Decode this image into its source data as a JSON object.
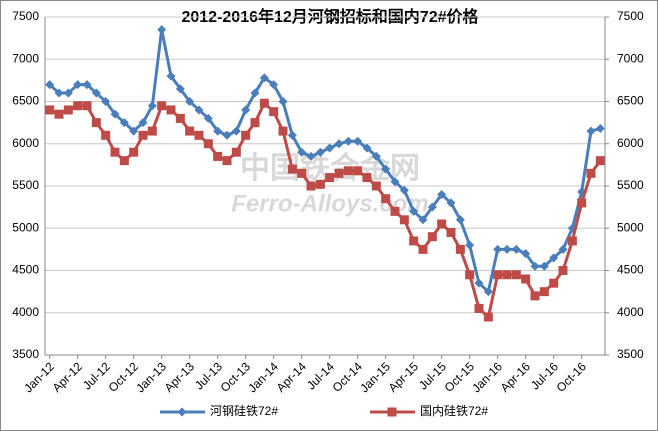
{
  "chart_data": {
    "type": "line",
    "title": "2012-2016年12月河钢招标和国内72#价格",
    "watermark": [
      "中国铁合金网",
      "Ferro-Alloys.com"
    ],
    "categories": [
      "Jan-12",
      null,
      null,
      "Apr-12",
      null,
      null,
      "Jul-12",
      null,
      null,
      "Oct-12",
      null,
      null,
      "Jan-13",
      null,
      null,
      "Apr-13",
      null,
      null,
      "Jul-13",
      null,
      null,
      "Oct-13",
      null,
      null,
      "Jan-14",
      null,
      null,
      "Apr-14",
      null,
      null,
      "Jul-14",
      null,
      null,
      "Oct-14",
      null,
      null,
      "Jan-15",
      null,
      null,
      "Apr-15",
      null,
      null,
      "Jul-15",
      null,
      null,
      "Oct-15",
      null,
      null,
      "Jan-16",
      null,
      null,
      "Apr-16",
      null,
      null,
      "Jul-16",
      null,
      null,
      "Oct-16",
      null,
      null
    ],
    "series": [
      {
        "name": "河钢硅铁72#",
        "color": "#4a7ebb",
        "marker": "diamond",
        "values": [
          6700,
          6600,
          6600,
          6700,
          6700,
          6600,
          6500,
          6350,
          6250,
          6150,
          6250,
          6450,
          7350,
          6800,
          6650,
          6500,
          6400,
          6300,
          6150,
          6100,
          6150,
          6400,
          6600,
          6780,
          6700,
          6500,
          6100,
          5900,
          5850,
          5900,
          5950,
          6000,
          6030,
          6030,
          5950,
          5850,
          5700,
          5550,
          5450,
          5200,
          5100,
          5250,
          5400,
          5300,
          5100,
          4800,
          4350,
          4250,
          4750,
          4750,
          4750,
          4700,
          4550,
          4550,
          4650,
          4750,
          5000,
          5430,
          6150,
          6180
        ]
      },
      {
        "name": "国内硅铁72#",
        "color": "#be4b48",
        "marker": "square",
        "values": [
          6400,
          6350,
          6400,
          6450,
          6450,
          6250,
          6100,
          5900,
          5800,
          5900,
          6100,
          6150,
          6450,
          6400,
          6300,
          6150,
          6100,
          6000,
          5850,
          5800,
          5900,
          6100,
          6250,
          6480,
          6380,
          6150,
          5700,
          5650,
          5500,
          5520,
          5600,
          5650,
          5680,
          5680,
          5600,
          5500,
          5350,
          5200,
          5100,
          4850,
          4750,
          4900,
          5050,
          4950,
          4750,
          4450,
          4050,
          3950,
          4450,
          4450,
          4450,
          4400,
          4200,
          4250,
          4350,
          4500,
          4850,
          5300,
          5650,
          5800
        ]
      }
    ],
    "ylim": [
      3500,
      7500
    ],
    "yticks": [
      3500,
      4000,
      4500,
      5000,
      5500,
      6000,
      6500,
      7000,
      7500
    ],
    "y2lim": [
      3500,
      7500
    ],
    "y2ticks": [
      3500,
      4000,
      4500,
      5000,
      5500,
      6000,
      6500,
      7000,
      7500
    ],
    "grid": true,
    "legend": "bottom"
  }
}
